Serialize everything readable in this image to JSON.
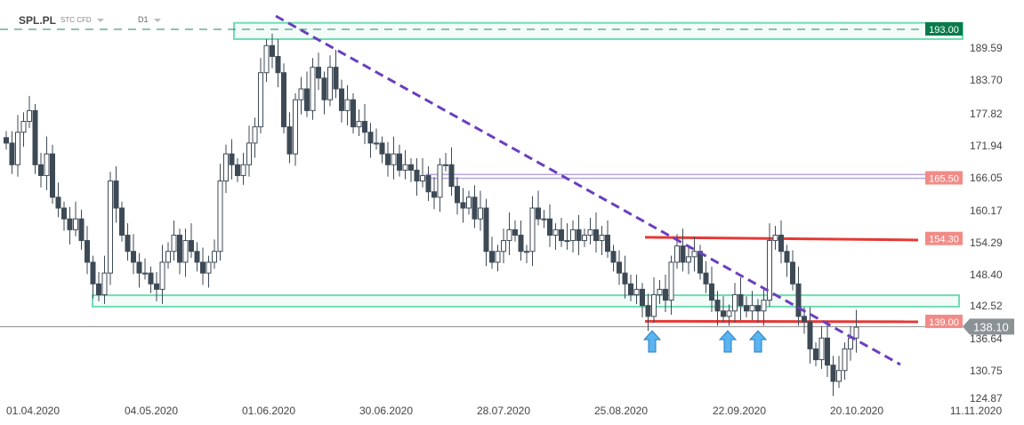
{
  "header": {
    "symbol": "SPL.PL",
    "instrument_type": "STC CFD",
    "timeframe": "D1"
  },
  "colors": {
    "down": "#3d4a56",
    "up": "#ffffff",
    "trend": "#6a3fbf",
    "zone": "#6fdcb4",
    "resistance": "#e53935",
    "label_red": "#f28b87",
    "label_green": "#0b7a4b",
    "current": "#8a9296",
    "arrow": "#5ab4f0"
  },
  "chart_data": {
    "type": "candlestick",
    "title": "SPL.PL D1",
    "ylim": [
      124.87,
      193.0
    ],
    "y_ticks": [
      "189.59",
      "183.70",
      "177.82",
      "171.94",
      "166.05",
      "160.17",
      "154.29",
      "148.40",
      "142.52",
      "136.64",
      "130.75",
      "124.87"
    ],
    "x_ticks": [
      "01.04.2020",
      "04.05.2020",
      "01.06.2020",
      "30.06.2020",
      "28.07.2020",
      "25.08.2020",
      "22.09.2020",
      "20.10.2020",
      "11.11.2020"
    ],
    "closes": [
      172,
      168,
      174,
      176,
      178,
      168,
      166,
      170,
      162,
      160,
      158,
      156,
      158,
      154,
      150,
      146,
      144,
      148,
      165,
      160,
      155,
      152,
      150,
      148,
      148,
      146,
      145,
      150,
      152,
      155,
      150,
      154,
      152,
      150,
      148,
      150,
      152,
      165,
      170,
      168,
      166,
      168,
      172,
      175,
      185,
      190,
      188,
      185,
      175,
      170,
      180,
      182,
      178,
      186,
      184,
      180,
      186,
      182,
      178,
      180,
      175,
      176,
      174,
      172,
      172,
      170,
      168,
      170,
      167,
      168,
      167,
      165,
      166,
      163,
      162,
      168,
      168,
      164,
      161,
      160,
      162,
      158,
      160,
      152,
      150,
      152,
      154,
      156,
      155,
      152,
      152,
      160,
      158,
      158,
      155,
      156,
      154,
      154,
      156,
      154,
      155,
      156,
      154,
      155,
      152,
      150,
      148,
      146,
      144,
      145,
      142,
      140,
      144,
      145,
      143,
      150,
      153,
      150,
      151,
      152,
      148,
      146,
      143,
      141,
      140,
      141,
      144,
      142,
      141,
      142,
      141,
      143,
      154,
      155,
      152,
      150,
      146,
      140,
      139,
      134,
      132,
      136,
      131,
      128,
      130,
      134,
      136,
      138
    ],
    "levels": [
      {
        "price": 193.0,
        "label": "193.00",
        "kind": "green"
      },
      {
        "price": 165.5,
        "label": "165.50",
        "kind": "red"
      },
      {
        "price": 154.3,
        "label": "154.30",
        "kind": "red"
      },
      {
        "price": 139.0,
        "label": "139.00",
        "kind": "red"
      },
      {
        "price": 138.1,
        "label": "138.10",
        "kind": "current"
      }
    ],
    "zones": [
      [
        191.2,
        194.2
      ],
      [
        141.8,
        143.9
      ]
    ],
    "annotations": [
      "support bounce arrows x3",
      "descending trend line"
    ]
  }
}
